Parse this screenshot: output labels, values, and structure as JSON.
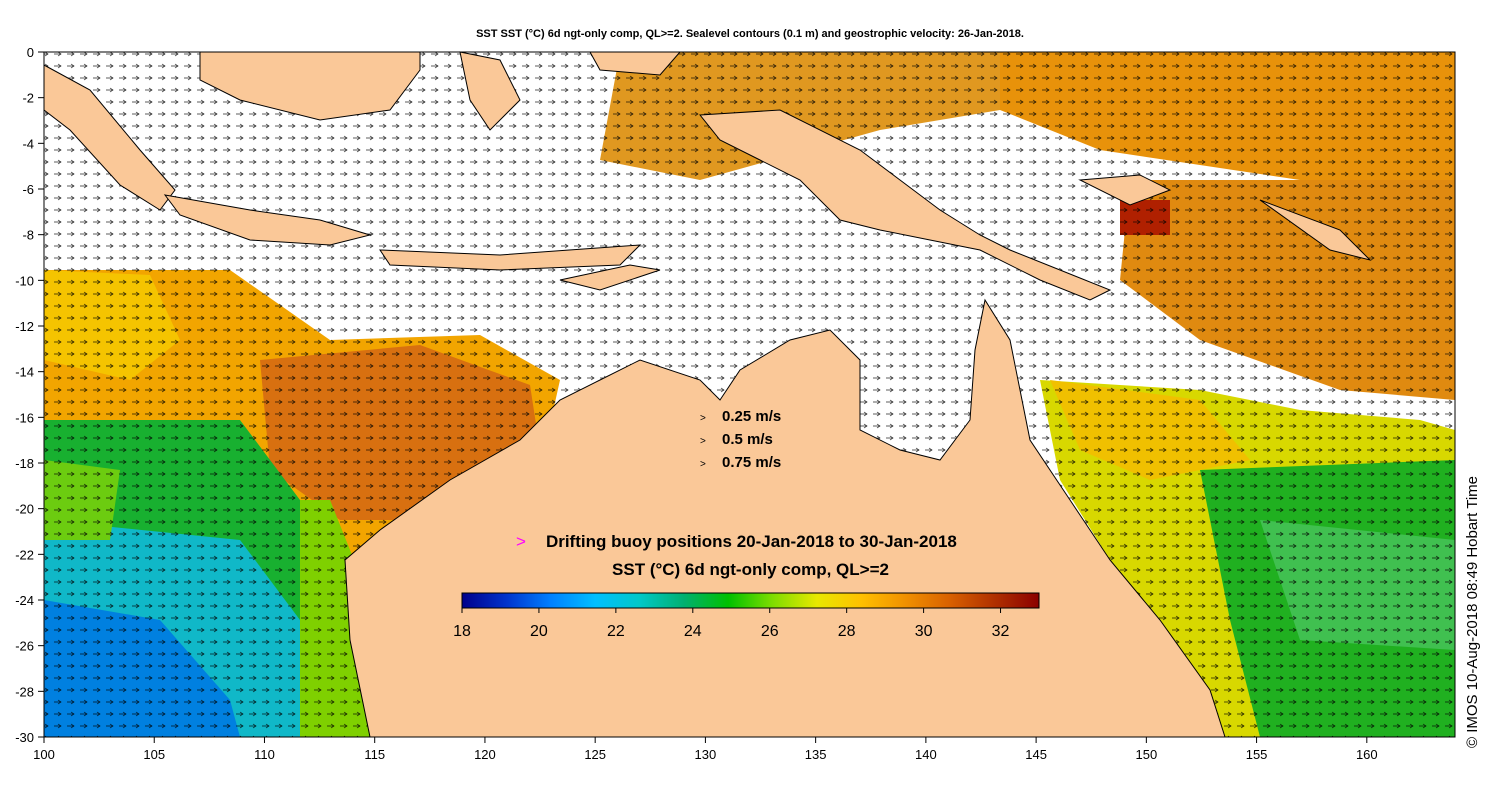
{
  "title": "SST SST (°C) 6d ngt-only comp, QL>=2. Sealevel contours (0.1 m) and geostrophic velocity: 26-Jan-2018.",
  "copyright": "© IMOS 10-Aug-2018 08:49 Hobart Time",
  "velocity_scale": [
    {
      "symbol": ">",
      "label": "0.25 m/s"
    },
    {
      "symbol": ">",
      "label": "0.5 m/s"
    },
    {
      "symbol": ">",
      "label": "0.75 m/s"
    }
  ],
  "buoy_legend": {
    "symbol": ">",
    "text": "Drifting buoy positions 20-Jan-2018 to 30-Jan-2018"
  },
  "colorbar": {
    "title": "SST (°C) 6d ngt-only comp, QL>=2",
    "min": 18,
    "max": 33,
    "ticks": [
      "18",
      "20",
      "22",
      "24",
      "26",
      "28",
      "30",
      "32"
    ],
    "colors": [
      "#00008b",
      "#0033cc",
      "#0080ff",
      "#00bfff",
      "#00c8c8",
      "#00b070",
      "#00c000",
      "#7fdd00",
      "#e8e800",
      "#ffc000",
      "#f09000",
      "#d86000",
      "#b03000",
      "#8b0000"
    ]
  },
  "axes": {
    "x_ticks": [
      "100",
      "105",
      "110",
      "115",
      "120",
      "125",
      "130",
      "135",
      "140",
      "145",
      "150",
      "155",
      "160"
    ],
    "y_ticks": [
      "0",
      "-2",
      "-4",
      "-6",
      "-8",
      "-10",
      "-12",
      "-14",
      "-16",
      "-18",
      "-20",
      "-22",
      "-24",
      "-26",
      "-28",
      "-30"
    ],
    "x_range": [
      100,
      164
    ],
    "y_range": [
      -30,
      0
    ]
  },
  "colors": {
    "land": "#fac898",
    "nodata": "#ffffff",
    "coast": "#000000"
  }
}
